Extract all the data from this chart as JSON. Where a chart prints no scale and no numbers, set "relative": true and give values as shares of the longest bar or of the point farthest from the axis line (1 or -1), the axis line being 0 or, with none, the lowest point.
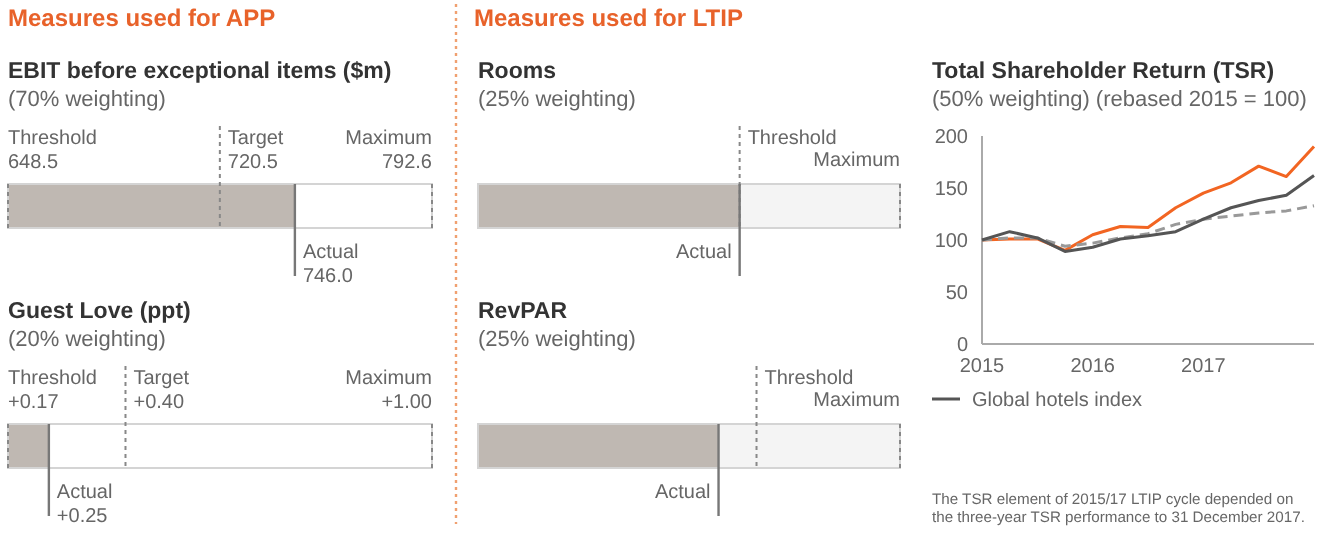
{
  "chart_data": [
    {
      "type": "bar",
      "orientation": "horizontal",
      "title": "EBIT before exceptional items ($m)",
      "subtitle": "(70% weighting)",
      "categories": [
        null
      ],
      "values": [
        746.0
      ],
      "color": "#bfb8b2",
      "xlim": [
        648.5,
        792.6
      ],
      "tick_labels": false,
      "ref_lines": [
        {
          "axis": "x",
          "value": 648.5,
          "label": "Threshold\n648.5",
          "line_style": "dotted"
        },
        {
          "axis": "x",
          "value": 720.5,
          "label": "Target\n720.5",
          "line_style": "dotted"
        },
        {
          "axis": "x",
          "value": 792.6,
          "label": "Maximum\n792.6",
          "line_style": "dotted"
        },
        {
          "axis": "x",
          "value": 746.0,
          "label": "Actual\n746.0",
          "line_style": "solid"
        }
      ],
      "annotations": [
        "Measures used for APP"
      ]
    },
    {
      "type": "bar",
      "orientation": "horizontal",
      "title": "Guest Love (ppt)",
      "subtitle": "(20% weighting)",
      "categories": [
        null
      ],
      "values": [
        0.25
      ],
      "color": "#bfb8b2",
      "xlim": [
        0.17,
        1.0
      ],
      "tick_labels": false,
      "ref_lines": [
        {
          "axis": "x",
          "value": 0.17,
          "label": "Threshold\n+0.17",
          "line_style": "dotted"
        },
        {
          "axis": "x",
          "value": 0.4,
          "label": "Target\n+0.40",
          "line_style": "dotted"
        },
        {
          "axis": "x",
          "value": 1.0,
          "label": "Maximum\n+1.00",
          "line_style": "dotted"
        },
        {
          "axis": "x",
          "value": 0.25,
          "label": "Actual\n+0.25",
          "line_style": "solid"
        }
      ]
    },
    {
      "type": "bar",
      "orientation": "horizontal",
      "title": "Rooms",
      "subtitle": "(25% weighting)",
      "categories": [
        null
      ],
      "relative": true,
      "stacked": true,
      "tick_labels": false,
      "series": [
        {
          "color": "#bfb8b2",
          "values": [
            0.62
          ]
        },
        {
          "color": "#f4f4f4",
          "values": [
            0.38
          ]
        }
      ],
      "ref_lines": [
        {
          "axis": "x",
          "value": 0.62,
          "label": "Threshold",
          "line_style": "dotted"
        },
        {
          "axis": "x",
          "value": 1,
          "label": "Maximum",
          "line_style": "dotted"
        },
        {
          "axis": "x",
          "value": 0.62,
          "label": "Actual",
          "line_style": "solid"
        }
      ],
      "annotations": [
        "Measures used for LTIP"
      ]
    },
    {
      "type": "bar",
      "orientation": "horizontal",
      "title": "RevPAR",
      "subtitle": "(25% weighting)",
      "categories": [
        null
      ],
      "relative": true,
      "stacked": true,
      "tick_labels": false,
      "series": [
        {
          "color": "#bfb8b2",
          "values": [
            0.57
          ]
        },
        {
          "color": "#f4f4f4",
          "values": [
            0.43
          ]
        }
      ],
      "ref_lines": [
        {
          "axis": "x",
          "value": 0.66,
          "label": "Threshold",
          "line_style": "dotted"
        },
        {
          "axis": "x",
          "value": 1,
          "label": "Maximum",
          "line_style": "dotted"
        },
        {
          "axis": "x",
          "value": 0.57,
          "label": "Actual",
          "line_style": "solid"
        }
      ]
    },
    {
      "type": "line",
      "title": "Total Shareholder Return (TSR)",
      "subtitle": "(50% weighting) (rebased 2015 = 100)",
      "x": [
        2015,
        2015.25,
        2015.5,
        2015.75,
        2016,
        2016.25,
        2016.5,
        2016.75,
        2017,
        2017.25,
        2017.5,
        2017.75,
        2018
      ],
      "xlim": [
        2015,
        2018
      ],
      "xticks": [
        2015,
        2016,
        2017
      ],
      "ylim": [
        0,
        200
      ],
      "yticks": [
        0,
        50,
        100,
        150,
        200
      ],
      "legend": "bottom",
      "series": [
        {
          "color": "#f26522",
          "values": [
            100,
            101,
            101,
            90,
            105,
            113,
            112,
            131,
            145,
            155,
            171,
            161,
            190
          ]
        },
        {
          "color": "#999999",
          "line_style": "dashed",
          "values": [
            100,
            102,
            102,
            94,
            97,
            102,
            106,
            115,
            120,
            123,
            126,
            128,
            133
          ]
        },
        {
          "name": "Global hotels index",
          "color": "#555555",
          "values": [
            100,
            108,
            102,
            89,
            93,
            101,
            104,
            108,
            120,
            131,
            138,
            143,
            162
          ]
        }
      ],
      "annotations": [
        "The TSR element of 2015/17 LTIP cycle depended on\nthe three-year TSR performance to 31 December 2017."
      ]
    }
  ]
}
